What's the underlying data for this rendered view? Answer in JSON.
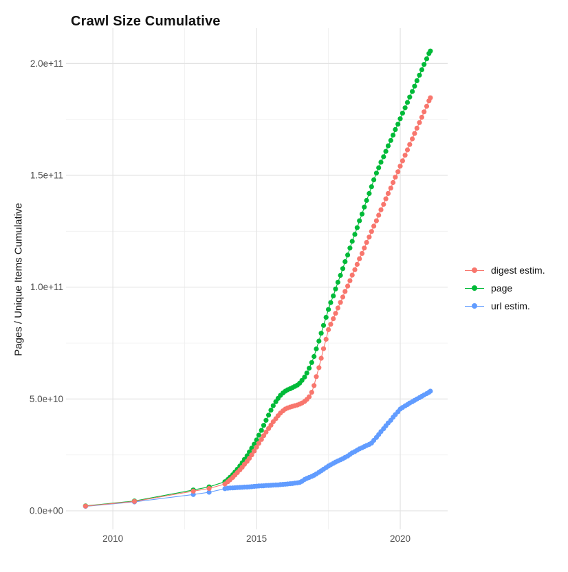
{
  "title": "Crawl Size Cumulative",
  "y_axis_title": "Pages / Unique Items Cumulative",
  "chart_data": {
    "type": "line",
    "title": "Crawl Size Cumulative",
    "xlabel": "",
    "ylabel": "Pages / Unique Items Cumulative",
    "legend_position": "right",
    "grid": true,
    "value_unit": "billions of items (1e9); y tick labels shown in scientific notation",
    "xlim": [
      2008.37,
      2021.65
    ],
    "ylim": [
      -8.3,
      215.8
    ],
    "x_ticks": [
      {
        "label": "2010",
        "value": 2010
      },
      {
        "label": "2015",
        "value": 2015
      },
      {
        "label": "2020",
        "value": 2020
      }
    ],
    "x_minor_ticks": [
      2012.5,
      2017.5
    ],
    "y_ticks": [
      {
        "label": "0.0e+00",
        "value": 0
      },
      {
        "label": "5.0e+10",
        "value": 50
      },
      {
        "label": "1.0e+11",
        "value": 100
      },
      {
        "label": "1.5e+11",
        "value": 150
      },
      {
        "label": "2.0e+11",
        "value": 200
      }
    ],
    "y_minor_ticks": [
      25,
      75,
      125,
      175
    ],
    "series": [
      {
        "name": "digest estim.",
        "color": "#F8766D",
        "points": [
          [
            2009.05,
            2.1
          ],
          [
            2010.75,
            4.2
          ],
          [
            2012.8,
            8.8
          ],
          [
            2013.35,
            10.0
          ],
          [
            2013.9,
            12.0
          ],
          [
            2014.0,
            13.0
          ],
          [
            2014.08,
            13.9
          ],
          [
            2014.17,
            14.9
          ],
          [
            2014.25,
            16.0
          ],
          [
            2014.33,
            17.1
          ],
          [
            2014.42,
            18.3
          ],
          [
            2014.5,
            19.5
          ],
          [
            2014.58,
            20.8
          ],
          [
            2014.67,
            22.1
          ],
          [
            2014.75,
            23.5
          ],
          [
            2014.83,
            25.0
          ],
          [
            2014.92,
            26.7
          ],
          [
            2015.0,
            28.5
          ],
          [
            2015.08,
            30.2
          ],
          [
            2015.17,
            31.9
          ],
          [
            2015.25,
            33.6
          ],
          [
            2015.33,
            35.2
          ],
          [
            2015.42,
            36.8
          ],
          [
            2015.5,
            38.3
          ],
          [
            2015.58,
            39.8
          ],
          [
            2015.67,
            41.2
          ],
          [
            2015.75,
            42.5
          ],
          [
            2015.83,
            43.7
          ],
          [
            2015.92,
            44.7
          ],
          [
            2016.0,
            45.5
          ],
          [
            2016.08,
            46.0
          ],
          [
            2016.17,
            46.4
          ],
          [
            2016.25,
            46.7
          ],
          [
            2016.33,
            47.0
          ],
          [
            2016.42,
            47.3
          ],
          [
            2016.5,
            47.7
          ],
          [
            2016.58,
            48.2
          ],
          [
            2016.67,
            48.9
          ],
          [
            2016.75,
            49.8
          ],
          [
            2016.83,
            51.0
          ],
          [
            2016.92,
            53.0
          ],
          [
            2017.0,
            56.0
          ],
          [
            2017.08,
            60.0
          ],
          [
            2017.17,
            64.0
          ],
          [
            2017.25,
            68.2
          ],
          [
            2017.33,
            72.5
          ],
          [
            2017.42,
            76.7
          ],
          [
            2017.5,
            81.0
          ],
          [
            2017.58,
            83.4
          ],
          [
            2017.67,
            85.9
          ],
          [
            2017.75,
            88.3
          ],
          [
            2017.83,
            90.7
          ],
          [
            2017.92,
            93.2
          ],
          [
            2018.0,
            95.6
          ],
          [
            2018.08,
            98.1
          ],
          [
            2018.17,
            100.5
          ],
          [
            2018.25,
            102.9
          ],
          [
            2018.33,
            105.4
          ],
          [
            2018.42,
            107.8
          ],
          [
            2018.5,
            110.2
          ],
          [
            2018.58,
            112.7
          ],
          [
            2018.67,
            115.1
          ],
          [
            2018.75,
            117.5
          ],
          [
            2018.83,
            120.0
          ],
          [
            2018.92,
            122.4
          ],
          [
            2019.0,
            124.9
          ],
          [
            2019.08,
            127.3
          ],
          [
            2019.17,
            129.7
          ],
          [
            2019.25,
            132.2
          ],
          [
            2019.33,
            134.6
          ],
          [
            2019.42,
            137.0
          ],
          [
            2019.5,
            139.5
          ],
          [
            2019.58,
            141.9
          ],
          [
            2019.67,
            144.3
          ],
          [
            2019.75,
            146.8
          ],
          [
            2019.83,
            149.2
          ],
          [
            2019.92,
            151.6
          ],
          [
            2020.0,
            154.1
          ],
          [
            2020.08,
            156.5
          ],
          [
            2020.17,
            159.0
          ],
          [
            2020.25,
            161.4
          ],
          [
            2020.33,
            163.8
          ],
          [
            2020.42,
            166.3
          ],
          [
            2020.5,
            168.7
          ],
          [
            2020.58,
            171.1
          ],
          [
            2020.67,
            173.6
          ],
          [
            2020.75,
            176.0
          ],
          [
            2020.83,
            178.4
          ],
          [
            2020.92,
            180.9
          ],
          [
            2021.0,
            183.3
          ],
          [
            2021.05,
            184.7
          ]
        ]
      },
      {
        "name": "page",
        "color": "#00BA38",
        "points": [
          [
            2009.05,
            2.2
          ],
          [
            2010.75,
            4.4
          ],
          [
            2012.8,
            9.3
          ],
          [
            2013.35,
            10.7
          ],
          [
            2013.9,
            13.0
          ],
          [
            2014.0,
            14.0
          ],
          [
            2014.08,
            15.0
          ],
          [
            2014.17,
            16.1
          ],
          [
            2014.25,
            17.3
          ],
          [
            2014.33,
            18.6
          ],
          [
            2014.42,
            20.0
          ],
          [
            2014.5,
            21.5
          ],
          [
            2014.58,
            23.0
          ],
          [
            2014.67,
            24.6
          ],
          [
            2014.75,
            26.3
          ],
          [
            2014.83,
            28.0
          ],
          [
            2014.92,
            29.8
          ],
          [
            2015.0,
            31.7
          ],
          [
            2015.08,
            33.8
          ],
          [
            2015.17,
            36.0
          ],
          [
            2015.25,
            38.2
          ],
          [
            2015.33,
            40.5
          ],
          [
            2015.42,
            42.8
          ],
          [
            2015.5,
            45.0
          ],
          [
            2015.58,
            47.0
          ],
          [
            2015.67,
            48.8
          ],
          [
            2015.75,
            50.3
          ],
          [
            2015.83,
            51.6
          ],
          [
            2015.92,
            52.7
          ],
          [
            2016.0,
            53.5
          ],
          [
            2016.08,
            54.1
          ],
          [
            2016.17,
            54.6
          ],
          [
            2016.25,
            55.1
          ],
          [
            2016.33,
            55.6
          ],
          [
            2016.42,
            56.2
          ],
          [
            2016.5,
            57.1
          ],
          [
            2016.58,
            58.3
          ],
          [
            2016.67,
            59.8
          ],
          [
            2016.75,
            61.6
          ],
          [
            2016.83,
            63.8
          ],
          [
            2016.92,
            66.3
          ],
          [
            2017.0,
            69.0
          ],
          [
            2017.08,
            72.4
          ],
          [
            2017.17,
            75.9
          ],
          [
            2017.25,
            79.4
          ],
          [
            2017.33,
            82.9
          ],
          [
            2017.42,
            86.5
          ],
          [
            2017.5,
            90.0
          ],
          [
            2017.58,
            93.1
          ],
          [
            2017.67,
            96.1
          ],
          [
            2017.75,
            99.2
          ],
          [
            2017.83,
            102.2
          ],
          [
            2017.92,
            105.3
          ],
          [
            2018.0,
            108.3
          ],
          [
            2018.08,
            111.4
          ],
          [
            2018.17,
            114.4
          ],
          [
            2018.25,
            117.5
          ],
          [
            2018.33,
            120.5
          ],
          [
            2018.42,
            123.6
          ],
          [
            2018.5,
            126.6
          ],
          [
            2018.58,
            129.7
          ],
          [
            2018.67,
            132.7
          ],
          [
            2018.75,
            135.8
          ],
          [
            2018.83,
            138.8
          ],
          [
            2018.92,
            141.9
          ],
          [
            2019.0,
            144.9
          ],
          [
            2019.08,
            148.0
          ],
          [
            2019.17,
            151.0
          ],
          [
            2019.25,
            153.4
          ],
          [
            2019.33,
            155.9
          ],
          [
            2019.42,
            158.3
          ],
          [
            2019.5,
            160.7
          ],
          [
            2019.58,
            163.2
          ],
          [
            2019.67,
            165.6
          ],
          [
            2019.75,
            168.0
          ],
          [
            2019.83,
            170.5
          ],
          [
            2019.92,
            172.9
          ],
          [
            2020.0,
            175.3
          ],
          [
            2020.08,
            177.8
          ],
          [
            2020.17,
            180.2
          ],
          [
            2020.25,
            182.6
          ],
          [
            2020.33,
            185.0
          ],
          [
            2020.42,
            187.5
          ],
          [
            2020.5,
            189.9
          ],
          [
            2020.58,
            192.3
          ],
          [
            2020.67,
            194.8
          ],
          [
            2020.75,
            197.2
          ],
          [
            2020.83,
            199.6
          ],
          [
            2020.92,
            202.1
          ],
          [
            2021.0,
            204.5
          ],
          [
            2021.05,
            205.6
          ]
        ]
      },
      {
        "name": "url estim.",
        "color": "#619CFF",
        "points": [
          [
            2009.05,
            2.0
          ],
          [
            2010.75,
            4.0
          ],
          [
            2012.8,
            7.3
          ],
          [
            2013.35,
            8.3
          ],
          [
            2013.9,
            9.9
          ],
          [
            2014.0,
            10.1
          ],
          [
            2014.08,
            10.2
          ],
          [
            2014.17,
            10.25
          ],
          [
            2014.25,
            10.3
          ],
          [
            2014.33,
            10.4
          ],
          [
            2014.42,
            10.45
          ],
          [
            2014.5,
            10.5
          ],
          [
            2014.58,
            10.6
          ],
          [
            2014.67,
            10.65
          ],
          [
            2014.75,
            10.7
          ],
          [
            2014.83,
            10.8
          ],
          [
            2014.92,
            10.9
          ],
          [
            2015.0,
            11.0
          ],
          [
            2015.08,
            11.1
          ],
          [
            2015.17,
            11.15
          ],
          [
            2015.25,
            11.2
          ],
          [
            2015.33,
            11.3
          ],
          [
            2015.42,
            11.35
          ],
          [
            2015.5,
            11.4
          ],
          [
            2015.58,
            11.5
          ],
          [
            2015.67,
            11.55
          ],
          [
            2015.75,
            11.6
          ],
          [
            2015.83,
            11.7
          ],
          [
            2015.92,
            11.8
          ],
          [
            2016.0,
            11.9
          ],
          [
            2016.08,
            12.0
          ],
          [
            2016.17,
            12.1
          ],
          [
            2016.25,
            12.2
          ],
          [
            2016.33,
            12.4
          ],
          [
            2016.42,
            12.5
          ],
          [
            2016.5,
            12.7
          ],
          [
            2016.58,
            13.2
          ],
          [
            2016.67,
            14.0
          ],
          [
            2016.75,
            14.5
          ],
          [
            2016.83,
            14.9
          ],
          [
            2016.92,
            15.4
          ],
          [
            2017.0,
            15.9
          ],
          [
            2017.08,
            16.5
          ],
          [
            2017.17,
            17.2
          ],
          [
            2017.25,
            17.9
          ],
          [
            2017.33,
            18.6
          ],
          [
            2017.42,
            19.3
          ],
          [
            2017.5,
            20.0
          ],
          [
            2017.58,
            20.6
          ],
          [
            2017.67,
            21.2
          ],
          [
            2017.75,
            21.8
          ],
          [
            2017.83,
            22.3
          ],
          [
            2017.92,
            22.8
          ],
          [
            2018.0,
            23.3
          ],
          [
            2018.08,
            23.9
          ],
          [
            2018.17,
            24.5
          ],
          [
            2018.25,
            25.2
          ],
          [
            2018.33,
            25.9
          ],
          [
            2018.42,
            26.5
          ],
          [
            2018.5,
            27.1
          ],
          [
            2018.58,
            27.7
          ],
          [
            2018.67,
            28.2
          ],
          [
            2018.75,
            28.7
          ],
          [
            2018.83,
            29.2
          ],
          [
            2018.92,
            29.7
          ],
          [
            2019.0,
            30.3
          ],
          [
            2019.08,
            31.5
          ],
          [
            2019.17,
            32.8
          ],
          [
            2019.25,
            34.1
          ],
          [
            2019.33,
            35.4
          ],
          [
            2019.42,
            36.7
          ],
          [
            2019.5,
            38.0
          ],
          [
            2019.58,
            39.3
          ],
          [
            2019.67,
            40.5
          ],
          [
            2019.75,
            41.8
          ],
          [
            2019.83,
            43.0
          ],
          [
            2019.92,
            44.3
          ],
          [
            2020.0,
            45.5
          ],
          [
            2020.08,
            46.2
          ],
          [
            2020.17,
            46.9
          ],
          [
            2020.25,
            47.5
          ],
          [
            2020.33,
            48.2
          ],
          [
            2020.42,
            48.8
          ],
          [
            2020.5,
            49.4
          ],
          [
            2020.58,
            50.0
          ],
          [
            2020.67,
            50.6
          ],
          [
            2020.75,
            51.2
          ],
          [
            2020.83,
            51.8
          ],
          [
            2020.92,
            52.4
          ],
          [
            2021.0,
            53.0
          ],
          [
            2021.05,
            53.5
          ]
        ]
      }
    ]
  },
  "colors": {
    "tick_text": "#4d4d4d",
    "title_text": "#111111",
    "grid_major": "#e3e3e3",
    "grid_minor": "#f0f0f0",
    "background": "#ffffff"
  }
}
